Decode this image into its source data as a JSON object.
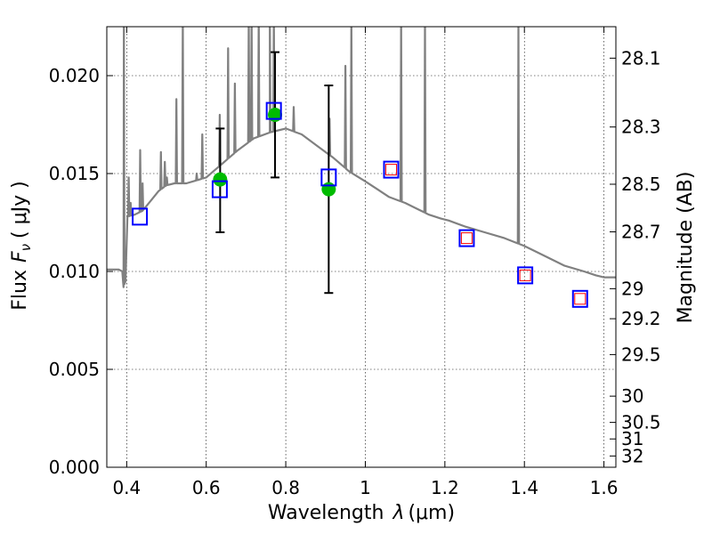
{
  "chart_data": {
    "type": "scatter",
    "xlabel": "Wavelength",
    "xlabel_sym": "λ",
    "xlabel_unit": "(μm)",
    "ylabel": "Flux",
    "ylabel_sym": "F",
    "ylabel_sub": "ν",
    "ylabel_unit": "( μJy )",
    "y2label": "Magnitude (AB)",
    "xlim": [
      0.35,
      1.63
    ],
    "ylim": [
      0.0,
      0.0225
    ],
    "grid": true,
    "x_ticks": [
      {
        "v": 0.4,
        "label": "0.4"
      },
      {
        "v": 0.6,
        "label": "0.6"
      },
      {
        "v": 0.8,
        "label": "0.8"
      },
      {
        "v": 1.0,
        "label": "1"
      },
      {
        "v": 1.2,
        "label": "1.2"
      },
      {
        "v": 1.4,
        "label": "1.4"
      },
      {
        "v": 1.6,
        "label": "1.6"
      }
    ],
    "y_ticks": [
      {
        "v": 0.0,
        "label": "0.000"
      },
      {
        "v": 0.005,
        "label": "0.005"
      },
      {
        "v": 0.01,
        "label": "0.010"
      },
      {
        "v": 0.015,
        "label": "0.015"
      },
      {
        "v": 0.02,
        "label": "0.020"
      }
    ],
    "mag_ticks": [
      {
        "mag": 28.1,
        "label": "28.1"
      },
      {
        "mag": 28.3,
        "label": "28.3"
      },
      {
        "mag": 28.5,
        "label": "28.5"
      },
      {
        "mag": 28.7,
        "label": "28.7"
      },
      {
        "mag": 29.0,
        "label": "29"
      },
      {
        "mag": 29.2,
        "label": "29.2"
      },
      {
        "mag": 29.5,
        "label": "29.5"
      },
      {
        "mag": 30.0,
        "label": "30"
      },
      {
        "mag": 30.5,
        "label": "30.5"
      },
      {
        "mag": 31.0,
        "label": "31"
      },
      {
        "mag": 32.0,
        "label": "32"
      }
    ],
    "series": [
      {
        "kind": "line",
        "color": "#808080",
        "continuum": [
          [
            0.35,
            0.0101
          ],
          [
            0.38,
            0.0101
          ],
          [
            0.389,
            0.01
          ],
          [
            0.392,
            0.0092
          ],
          [
            0.397,
            0.0095
          ],
          [
            0.402,
            0.0128
          ],
          [
            0.42,
            0.0129
          ],
          [
            0.44,
            0.0131
          ],
          [
            0.46,
            0.0136
          ],
          [
            0.48,
            0.0141
          ],
          [
            0.5,
            0.0144
          ],
          [
            0.52,
            0.0145
          ],
          [
            0.55,
            0.0145
          ],
          [
            0.6,
            0.0148
          ],
          [
            0.64,
            0.0155
          ],
          [
            0.68,
            0.0162
          ],
          [
            0.72,
            0.0168
          ],
          [
            0.76,
            0.0171
          ],
          [
            0.8,
            0.0173
          ],
          [
            0.84,
            0.017
          ],
          [
            0.88,
            0.0164
          ],
          [
            0.92,
            0.0158
          ],
          [
            0.96,
            0.0151
          ],
          [
            1.0,
            0.0146
          ],
          [
            1.03,
            0.0142
          ],
          [
            1.06,
            0.0138
          ],
          [
            1.1,
            0.0135
          ],
          [
            1.13,
            0.0132
          ],
          [
            1.16,
            0.0129
          ],
          [
            1.19,
            0.0127
          ],
          [
            1.21,
            0.0126
          ],
          [
            1.25,
            0.0123
          ],
          [
            1.3,
            0.012
          ],
          [
            1.35,
            0.0117
          ],
          [
            1.4,
            0.0113
          ],
          [
            1.45,
            0.0108
          ],
          [
            1.5,
            0.0103
          ],
          [
            1.55,
            0.01
          ],
          [
            1.58,
            0.0098
          ],
          [
            1.6,
            0.0097
          ],
          [
            1.63,
            0.0097
          ]
        ],
        "emission_lines": [
          [
            0.393,
            0.023
          ],
          [
            0.405,
            0.0148
          ],
          [
            0.41,
            0.0135
          ],
          [
            0.434,
            0.0162
          ],
          [
            0.44,
            0.0145
          ],
          [
            0.486,
            0.0161
          ],
          [
            0.496,
            0.0156
          ],
          [
            0.501,
            0.0148
          ],
          [
            0.525,
            0.0188
          ],
          [
            0.541,
            0.023
          ],
          [
            0.576,
            0.015
          ],
          [
            0.59,
            0.017
          ],
          [
            0.634,
            0.018
          ],
          [
            0.655,
            0.0214
          ],
          [
            0.672,
            0.0196
          ],
          [
            0.707,
            0.023
          ],
          [
            0.714,
            0.023
          ],
          [
            0.732,
            0.023
          ],
          [
            0.76,
            0.023
          ],
          [
            0.77,
            0.023
          ],
          [
            0.82,
            0.0184
          ],
          [
            0.91,
            0.0178
          ],
          [
            0.95,
            0.0205
          ],
          [
            0.965,
            0.023
          ],
          [
            1.09,
            0.023
          ],
          [
            1.15,
            0.023
          ],
          [
            1.385,
            0.0225
          ]
        ]
      },
      {
        "kind": "points",
        "color": "#00bb00",
        "points": [
          [
            0.635,
            0.0147
          ],
          [
            0.773,
            0.018
          ],
          [
            0.908,
            0.0142
          ]
        ]
      },
      {
        "kind": "errorbars",
        "color": "#000000",
        "bars": [
          [
            0.635,
            0.012,
            0.0173
          ],
          [
            0.773,
            0.0148,
            0.0212
          ],
          [
            0.908,
            0.0089,
            0.0195
          ]
        ]
      },
      {
        "kind": "open-squares",
        "color": "#0000ff",
        "points": [
          [
            0.433,
            0.0128
          ],
          [
            0.634,
            0.0142
          ],
          [
            0.77,
            0.0182
          ],
          [
            0.908,
            0.0148
          ],
          [
            1.065,
            0.0152
          ],
          [
            1.255,
            0.0117
          ],
          [
            1.402,
            0.0098
          ],
          [
            1.54,
            0.0086
          ]
        ]
      },
      {
        "kind": "small-squares",
        "color": "#ff0000",
        "points": [
          [
            1.065,
            0.0152
          ],
          [
            1.255,
            0.0117
          ],
          [
            1.402,
            0.0098
          ],
          [
            1.54,
            0.0086
          ]
        ]
      }
    ]
  }
}
